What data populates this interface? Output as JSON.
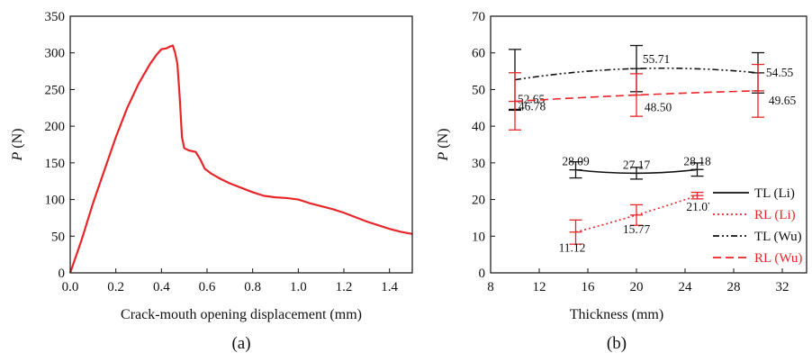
{
  "figure": {
    "panel_labels": [
      "(a)",
      "(b)"
    ]
  },
  "chart_data": [
    {
      "type": "line",
      "panel": "(a)",
      "xlabel": "Crack-mouth opening displacement (mm)",
      "ylabel": "P (N)",
      "xlim": [
        0,
        1.5
      ],
      "ylim": [
        0,
        350
      ],
      "xticks": [
        "0.0",
        "0.2",
        "0.4",
        "0.6",
        "0.8",
        "1.0",
        "1.2",
        "1.4"
      ],
      "yticks": [
        "0",
        "50",
        "100",
        "150",
        "200",
        "250",
        "300",
        "350"
      ],
      "grid": false,
      "series": [
        {
          "color": "#e8262a",
          "x": [
            0,
            0.05,
            0.1,
            0.15,
            0.2,
            0.25,
            0.3,
            0.35,
            0.38,
            0.4,
            0.42,
            0.44,
            0.45,
            0.46,
            0.47,
            0.48,
            0.49,
            0.5,
            0.52,
            0.55,
            0.57,
            0.59,
            0.62,
            0.66,
            0.7,
            0.75,
            0.8,
            0.85,
            0.9,
            0.95,
            1.0,
            1.05,
            1.1,
            1.15,
            1.2,
            1.25,
            1.3,
            1.35,
            1.4,
            1.45,
            1.5
          ],
          "y": [
            0,
            45,
            95,
            140,
            185,
            225,
            258,
            285,
            298,
            305,
            306,
            309,
            310,
            300,
            285,
            240,
            185,
            170,
            167,
            165,
            155,
            142,
            135,
            128,
            122,
            116,
            110,
            105,
            103,
            102,
            100,
            95,
            91,
            87,
            82,
            76,
            70,
            65,
            60,
            56,
            53
          ]
        }
      ]
    },
    {
      "type": "line",
      "panel": "(b)",
      "xlabel": "Thickness (mm)",
      "ylabel": "P (N)",
      "xlim": [
        8,
        34
      ],
      "ylim": [
        0,
        70
      ],
      "xticks": [
        "8",
        "12",
        "16",
        "20",
        "24",
        "28",
        "32"
      ],
      "yticks": [
        "0",
        "10",
        "20",
        "30",
        "40",
        "50",
        "60",
        "70"
      ],
      "grid": false,
      "legend_position": "right",
      "series": [
        {
          "name": "TL (Li)",
          "color": "#111111",
          "style": "solid",
          "x": [
            15,
            20,
            25
          ],
          "y": [
            28.09,
            27.17,
            28.18
          ],
          "err": [
            2.2,
            1.6,
            1.8
          ],
          "labels": [
            "28.09",
            "27.17",
            "28.18"
          ]
        },
        {
          "name": "RL (Li)",
          "color": "#e8262a",
          "style": "dotted",
          "x": [
            15,
            20,
            25
          ],
          "y": [
            11.12,
            15.77,
            21.07
          ],
          "err": [
            3.3,
            2.8,
            0.9
          ],
          "labels": [
            "11.12",
            "15.77",
            "21.07"
          ]
        },
        {
          "name": "TL (Wu)",
          "color": "#111111",
          "style": "dashdotdot",
          "x": [
            10,
            20,
            30
          ],
          "y": [
            52.65,
            55.71,
            54.55
          ],
          "err": [
            8.3,
            6.3,
            5.5
          ],
          "labels": [
            "52.65",
            "55.71",
            "54.55"
          ],
          "label_points": [
            44.6,
            55.71,
            54.55
          ]
        },
        {
          "name": "RL (Wu)",
          "color": "#e8262a",
          "style": "dashed",
          "x": [
            10,
            20,
            30
          ],
          "y": [
            46.78,
            48.5,
            49.65
          ],
          "err": [
            7.8,
            5.8,
            7.2
          ],
          "labels": [
            "46.78",
            "48.50",
            "49.65"
          ]
        }
      ]
    }
  ]
}
